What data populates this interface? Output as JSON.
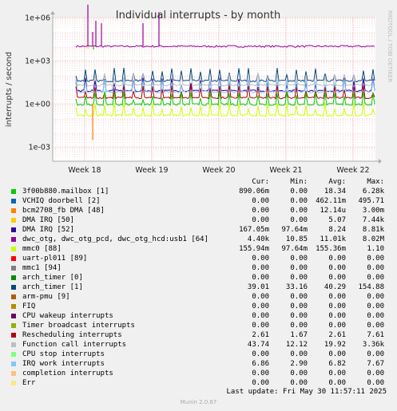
{
  "chart_data": {
    "type": "line",
    "title": "Individual interrupts - by month",
    "ylabel": "interrupts / second",
    "yscale": "log",
    "ylim": [
      0.0001,
      1000000
    ],
    "y_ticks": [
      "1e+06",
      "1e+03",
      "1e+00",
      "1e-03"
    ],
    "x_ticks": [
      "Week 18",
      "Week 19",
      "Week 20",
      "Week 21",
      "Week 22"
    ],
    "side_label": "RRDTOOL / TOBI OETIKER",
    "grid": true,
    "columns": [
      "Cur:",
      "Min:",
      "Avg:",
      "Max:"
    ],
    "series": [
      {
        "name": "3f00b880.mailbox [1]",
        "color": "#00cc00",
        "cur": "890.06m",
        "min": "0.00",
        "avg": "18.34",
        "max": "6.28k"
      },
      {
        "name": "VCHIQ doorbell [2]",
        "color": "#0066b3",
        "cur": "0.00",
        "min": "0.00",
        "avg": "462.11m",
        "max": "495.71"
      },
      {
        "name": "bcm2708_fb DMA [48]",
        "color": "#ff8000",
        "cur": "0.00",
        "min": "0.00",
        "avg": "12.14u",
        "max": "3.00m"
      },
      {
        "name": "DMA IRQ [50]",
        "color": "#ffcc00",
        "cur": "0.00",
        "min": "0.00",
        "avg": "5.07",
        "max": "7.44k"
      },
      {
        "name": "DMA IRQ [52]",
        "color": "#330099",
        "cur": "167.05m",
        "min": "97.64m",
        "avg": "8.24",
        "max": "8.81k"
      },
      {
        "name": "dwc_otg, dwc_otg_pcd, dwc_otg_hcd:usb1 [64]",
        "color": "#990099",
        "cur": "4.40k",
        "min": "10.85",
        "avg": "11.01k",
        "max": "8.02M"
      },
      {
        "name": "mmc0 [88]",
        "color": "#ccff00",
        "cur": "155.94m",
        "min": "97.64m",
        "avg": "155.36m",
        "max": "1.10"
      },
      {
        "name": "uart-pl011 [89]",
        "color": "#ff0000",
        "cur": "0.00",
        "min": "0.00",
        "avg": "0.00",
        "max": "0.00"
      },
      {
        "name": "mmc1 [94]",
        "color": "#808080",
        "cur": "0.00",
        "min": "0.00",
        "avg": "0.00",
        "max": "0.00"
      },
      {
        "name": "arch_timer [0]",
        "color": "#008f00",
        "cur": "0.00",
        "min": "0.00",
        "avg": "0.00",
        "max": "0.00"
      },
      {
        "name": "arch_timer [1]",
        "color": "#00487d",
        "cur": "39.01",
        "min": "33.16",
        "avg": "40.29",
        "max": "154.88"
      },
      {
        "name": "arm-pmu [9]",
        "color": "#b35a00",
        "cur": "0.00",
        "min": "0.00",
        "avg": "0.00",
        "max": "0.00"
      },
      {
        "name": "FIQ",
        "color": "#b38f00",
        "cur": "0.00",
        "min": "0.00",
        "avg": "0.00",
        "max": "0.00"
      },
      {
        "name": "CPU wakeup interrupts",
        "color": "#6b006b",
        "cur": "0.00",
        "min": "0.00",
        "avg": "0.00",
        "max": "0.00"
      },
      {
        "name": "Timer broadcast interrupts",
        "color": "#8fb300",
        "cur": "0.00",
        "min": "0.00",
        "avg": "0.00",
        "max": "0.00"
      },
      {
        "name": "Rescheduling interrupts",
        "color": "#b30000",
        "cur": "2.61",
        "min": "1.67",
        "avg": "2.61",
        "max": "7.61"
      },
      {
        "name": "Function call interrupts",
        "color": "#bebebe",
        "cur": "43.74",
        "min": "12.12",
        "avg": "19.92",
        "max": "3.36k"
      },
      {
        "name": "CPU stop interrupts",
        "color": "#80ff80",
        "cur": "0.00",
        "min": "0.00",
        "avg": "0.00",
        "max": "0.00"
      },
      {
        "name": "IRQ work interrupts",
        "color": "#80c9ff",
        "cur": "6.86",
        "min": "2.90",
        "avg": "6.82",
        "max": "7.67"
      },
      {
        "name": "completion interrupts",
        "color": "#ffc080",
        "cur": "0.00",
        "min": "0.00",
        "avg": "0.00",
        "max": "0.00"
      },
      {
        "name": "Err",
        "color": "#ffe680",
        "cur": "0.00",
        "min": "0.00",
        "avg": "0.00",
        "max": "0.00"
      }
    ],
    "baselines": [
      {
        "color": "#990099",
        "value": 10000
      },
      {
        "color": "#00487d",
        "value": 40
      },
      {
        "color": "#bebebe",
        "value": 20
      },
      {
        "color": "#330099",
        "value": 8
      },
      {
        "color": "#80c9ff",
        "value": 6.8
      },
      {
        "color": "#b30000",
        "value": 2.6
      },
      {
        "color": "#00cc00",
        "value": 0.9
      },
      {
        "color": "#ccff00",
        "value": 0.155
      }
    ]
  },
  "footer": {
    "last_update": "Last update: Fri May 30 11:57:11 2025",
    "munin": "Munin 2.0.67"
  }
}
